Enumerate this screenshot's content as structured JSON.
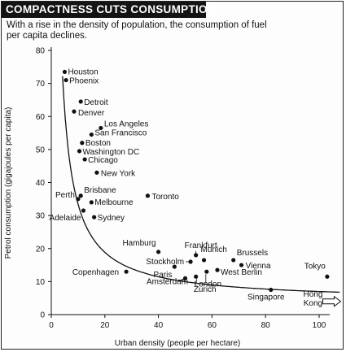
{
  "chart_data": {
    "type": "scatter",
    "title": "COMPACTNESS CUTS CONSUMPTION",
    "subtitle": "With a rise in the density of population, the consumption of fuel per capita declines.",
    "xlabel": "Urban density (people per hectare)",
    "ylabel": "Petrol consumption (gigajoules per capita)",
    "xlim": [
      0,
      105
    ],
    "ylim": [
      0,
      80
    ],
    "x_ticks": [
      "0",
      "20",
      "40",
      "60",
      "80",
      "100"
    ],
    "y_ticks": [
      "0",
      "10",
      "20",
      "30",
      "40",
      "50",
      "60",
      "70",
      "80"
    ],
    "grid": false,
    "trend_line": true,
    "points": [
      {
        "label": "Houston",
        "x": 5,
        "y": 73.5
      },
      {
        "label": "Phoenix",
        "x": 5.5,
        "y": 71
      },
      {
        "label": "Detroit",
        "x": 11,
        "y": 64.5
      },
      {
        "label": "Denver",
        "x": 8.5,
        "y": 61.5
      },
      {
        "label": "Los Angeles",
        "x": 18.5,
        "y": 56.5
      },
      {
        "label": "San Francisco",
        "x": 15,
        "y": 54.5
      },
      {
        "label": "Boston",
        "x": 11.5,
        "y": 52
      },
      {
        "label": "Washington DC",
        "x": 10.5,
        "y": 49.5
      },
      {
        "label": "Chicago",
        "x": 12.5,
        "y": 47
      },
      {
        "label": "New York",
        "x": 17,
        "y": 43
      },
      {
        "label": "Toronto",
        "x": 36,
        "y": 36
      },
      {
        "label": "Brisbane",
        "x": 11,
        "y": 36
      },
      {
        "label": "Perth",
        "x": 10,
        "y": 35
      },
      {
        "label": "Melbourne",
        "x": 15,
        "y": 34
      },
      {
        "label": "Adelaide",
        "x": 12,
        "y": 31.5
      },
      {
        "label": "Sydney",
        "x": 16,
        "y": 29.5
      },
      {
        "label": "Hamburg",
        "x": 40,
        "y": 19
      },
      {
        "label": "Frankfurt",
        "x": 54,
        "y": 18
      },
      {
        "label": "Munich",
        "x": 57,
        "y": 16.5
      },
      {
        "label": "Brussels",
        "x": 68,
        "y": 16.5
      },
      {
        "label": "Stockholm",
        "x": 52,
        "y": 16
      },
      {
        "label": "Vienna",
        "x": 71,
        "y": 15
      },
      {
        "label": "Paris",
        "x": 46,
        "y": 14.5
      },
      {
        "label": "Amsterdam",
        "x": 50,
        "y": 11
      },
      {
        "label": "London",
        "x": 54,
        "y": 11.5
      },
      {
        "label": "Copenhagen",
        "x": 28,
        "y": 13
      },
      {
        "label": "Zurich",
        "x": 58,
        "y": 13
      },
      {
        "label": "West Berlin",
        "x": 62,
        "y": 13.5
      },
      {
        "label": "Tokyo",
        "x": 103,
        "y": 11.5
      },
      {
        "label": "Singapore",
        "x": 82,
        "y": 7.5
      },
      {
        "label": "Hong Kong",
        "x": 105,
        "y": 4
      }
    ]
  }
}
